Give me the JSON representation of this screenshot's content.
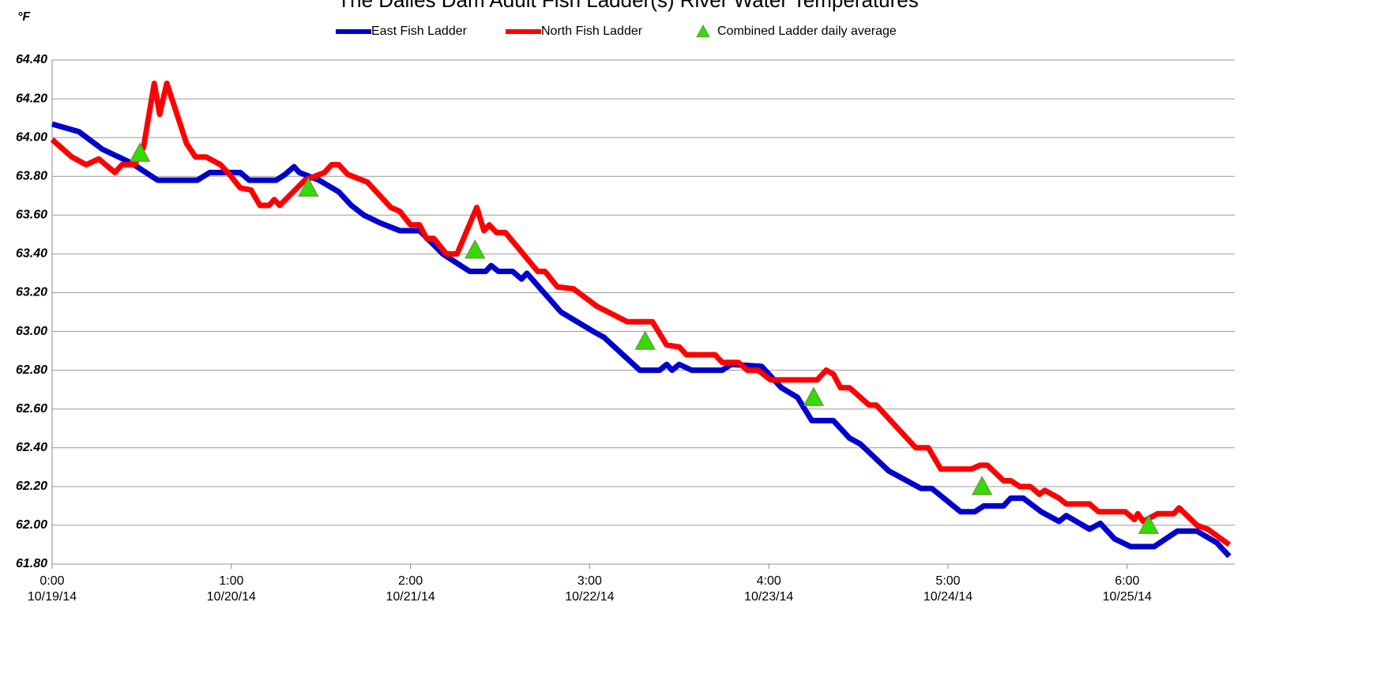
{
  "chart_data": {
    "type": "line",
    "title": "The Dalles Dam Adult Fish Ladder(s) River Water Temperatures",
    "y_label": "°F",
    "xlim": [
      0,
      6.6
    ],
    "ylim": [
      61.8,
      64.4
    ],
    "yticks": [
      {
        "value": 61.8,
        "label": "61.80"
      },
      {
        "value": 62.0,
        "label": "62.00"
      },
      {
        "value": 62.2,
        "label": "62.20"
      },
      {
        "value": 62.4,
        "label": "62.40"
      },
      {
        "value": 62.6,
        "label": "62.60"
      },
      {
        "value": 62.8,
        "label": "62.80"
      },
      {
        "value": 63.0,
        "label": "63.00"
      },
      {
        "value": 63.2,
        "label": "63.20"
      },
      {
        "value": 63.4,
        "label": "63.40"
      },
      {
        "value": 63.6,
        "label": "63.60"
      },
      {
        "value": 63.8,
        "label": "63.80"
      },
      {
        "value": 64.0,
        "label": "64.00"
      },
      {
        "value": 64.2,
        "label": "64.20"
      },
      {
        "value": 64.4,
        "label": "64.40"
      }
    ],
    "xticks": [
      {
        "value": 0,
        "label": "0:00\n10/19/14"
      },
      {
        "value": 1,
        "label": "1:00\n10/20/14"
      },
      {
        "value": 2,
        "label": "2:00\n10/21/14"
      },
      {
        "value": 3,
        "label": "3:00\n10/22/14"
      },
      {
        "value": 4,
        "label": "4:00\n10/23/14"
      },
      {
        "value": 5,
        "label": "5:00\n10/24/14"
      },
      {
        "value": 6,
        "label": "6:00\n10/25/14"
      }
    ],
    "grid": true,
    "legend": "top",
    "series": [
      {
        "name": "East Fish Ladder",
        "color": "#0000cc",
        "marker": "line",
        "x": [
          0,
          0.15,
          0.28,
          0.44,
          0.59,
          0.81,
          0.88,
          1.05,
          1.1,
          1.25,
          1.3,
          1.35,
          1.38,
          1.49,
          1.6,
          1.67,
          1.74,
          1.83,
          1.94,
          2.05,
          2.18,
          2.33,
          2.42,
          2.45,
          2.49,
          2.57,
          2.62,
          2.65,
          2.84,
          3.02,
          3.08,
          3.28,
          3.39,
          3.43,
          3.46,
          3.5,
          3.57,
          3.74,
          3.79,
          3.96,
          4.07,
          4.16,
          4.24,
          4.36,
          4.45,
          4.51,
          4.67,
          4.85,
          4.91,
          5.07,
          5.15,
          5.2,
          5.31,
          5.35,
          5.42,
          5.52,
          5.62,
          5.66,
          5.79,
          5.85,
          5.93,
          6.02,
          6.15,
          6.28,
          6.39,
          6.5,
          6.57
        ],
        "values": [
          64.07,
          64.03,
          63.94,
          63.87,
          63.78,
          63.78,
          63.82,
          63.82,
          63.78,
          63.78,
          63.81,
          63.85,
          63.82,
          63.78,
          63.72,
          63.65,
          63.6,
          63.56,
          63.52,
          63.52,
          63.4,
          63.31,
          63.31,
          63.34,
          63.31,
          63.31,
          63.27,
          63.3,
          63.1,
          63.0,
          62.97,
          62.8,
          62.8,
          62.83,
          62.8,
          62.83,
          62.8,
          62.8,
          62.83,
          62.82,
          62.71,
          62.66,
          62.54,
          62.54,
          62.45,
          62.42,
          62.28,
          62.19,
          62.19,
          62.07,
          62.07,
          62.1,
          62.1,
          62.14,
          62.14,
          62.07,
          62.02,
          62.05,
          61.98,
          62.01,
          61.93,
          61.89,
          61.89,
          61.97,
          61.97,
          61.91,
          61.84
        ]
      },
      {
        "name": "North Fish Ladder",
        "color": "#ff0000",
        "marker": "line",
        "x": [
          0,
          0.11,
          0.19,
          0.26,
          0.35,
          0.39,
          0.46,
          0.51,
          0.57,
          0.6,
          0.64,
          0.75,
          0.8,
          0.86,
          0.94,
          0.99,
          1.05,
          1.11,
          1.16,
          1.21,
          1.24,
          1.27,
          1.41,
          1.52,
          1.56,
          1.6,
          1.65,
          1.76,
          1.89,
          1.94,
          2.0,
          2.05,
          2.09,
          2.13,
          2.2,
          2.26,
          2.37,
          2.41,
          2.44,
          2.48,
          2.53,
          2.71,
          2.75,
          2.82,
          2.91,
          3.04,
          3.21,
          3.35,
          3.43,
          3.5,
          3.54,
          3.7,
          3.74,
          3.83,
          3.88,
          3.94,
          4.01,
          4.27,
          4.32,
          4.36,
          4.4,
          4.45,
          4.56,
          4.6,
          4.76,
          4.82,
          4.89,
          4.96,
          5.13,
          5.18,
          5.22,
          5.31,
          5.35,
          5.4,
          5.46,
          5.51,
          5.54,
          5.62,
          5.66,
          5.79,
          5.84,
          5.99,
          6.04,
          6.06,
          6.09,
          6.17,
          6.26,
          6.29,
          6.39,
          6.45,
          6.57
        ],
        "values": [
          63.99,
          63.9,
          63.86,
          63.89,
          63.82,
          63.86,
          63.86,
          63.95,
          64.28,
          64.12,
          64.28,
          63.97,
          63.9,
          63.9,
          63.86,
          63.81,
          63.74,
          63.73,
          63.65,
          63.65,
          63.68,
          63.65,
          63.78,
          63.82,
          63.86,
          63.86,
          63.81,
          63.77,
          63.64,
          63.62,
          63.55,
          63.55,
          63.48,
          63.48,
          63.4,
          63.4,
          63.64,
          63.52,
          63.55,
          63.51,
          63.51,
          63.31,
          63.31,
          63.23,
          63.22,
          63.13,
          63.05,
          63.05,
          62.93,
          62.92,
          62.88,
          62.88,
          62.84,
          62.84,
          62.8,
          62.8,
          62.75,
          62.75,
          62.8,
          62.78,
          62.71,
          62.71,
          62.62,
          62.62,
          62.46,
          62.4,
          62.4,
          62.29,
          62.29,
          62.31,
          62.31,
          62.23,
          62.23,
          62.2,
          62.2,
          62.16,
          62.18,
          62.14,
          62.11,
          62.11,
          62.07,
          62.07,
          62.03,
          62.06,
          62.02,
          62.06,
          62.06,
          62.09,
          62.0,
          61.98,
          61.9
        ]
      },
      {
        "name": "Combined Ladder daily average",
        "color": "#33dd00",
        "marker": "triangle",
        "x": [
          0.49,
          1.43,
          2.36,
          3.31,
          4.25,
          5.19,
          6.12
        ],
        "values": [
          63.92,
          63.74,
          63.42,
          62.95,
          62.66,
          62.2,
          62.0
        ]
      }
    ]
  }
}
